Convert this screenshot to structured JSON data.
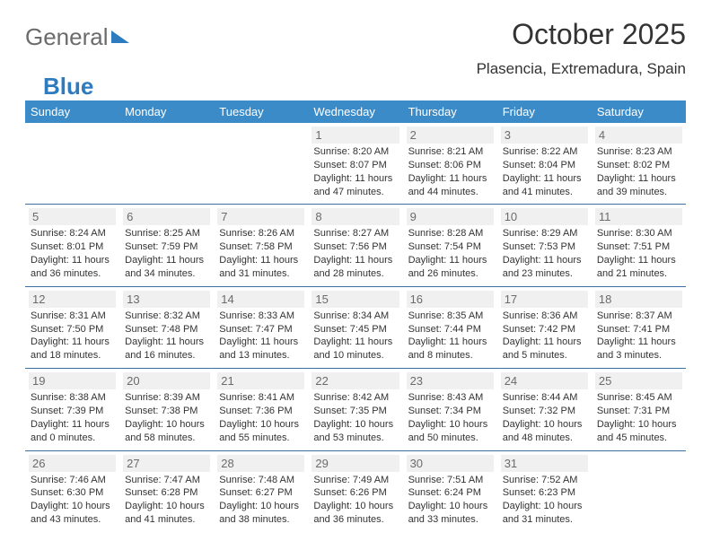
{
  "brand": {
    "part1": "General",
    "part2": "Blue"
  },
  "title": "October 2025",
  "location": "Plasencia, Extremadura, Spain",
  "headers": [
    "Sunday",
    "Monday",
    "Tuesday",
    "Wednesday",
    "Thursday",
    "Friday",
    "Saturday"
  ],
  "colors": {
    "header_bg": "#3b8bc8",
    "header_text": "#ffffff",
    "row_border": "#3b6fa0",
    "daynum_bg": "#f0f0f0",
    "daynum_text": "#6b6b6b",
    "body_text": "#333333",
    "brand_gray": "#6b6b6b",
    "brand_blue": "#2f7bbf"
  },
  "weeks": [
    [
      null,
      null,
      null,
      {
        "n": "1",
        "sr": "8:20 AM",
        "ss": "8:07 PM",
        "dl": "11 hours and 47 minutes."
      },
      {
        "n": "2",
        "sr": "8:21 AM",
        "ss": "8:06 PM",
        "dl": "11 hours and 44 minutes."
      },
      {
        "n": "3",
        "sr": "8:22 AM",
        "ss": "8:04 PM",
        "dl": "11 hours and 41 minutes."
      },
      {
        "n": "4",
        "sr": "8:23 AM",
        "ss": "8:02 PM",
        "dl": "11 hours and 39 minutes."
      }
    ],
    [
      {
        "n": "5",
        "sr": "8:24 AM",
        "ss": "8:01 PM",
        "dl": "11 hours and 36 minutes."
      },
      {
        "n": "6",
        "sr": "8:25 AM",
        "ss": "7:59 PM",
        "dl": "11 hours and 34 minutes."
      },
      {
        "n": "7",
        "sr": "8:26 AM",
        "ss": "7:58 PM",
        "dl": "11 hours and 31 minutes."
      },
      {
        "n": "8",
        "sr": "8:27 AM",
        "ss": "7:56 PM",
        "dl": "11 hours and 28 minutes."
      },
      {
        "n": "9",
        "sr": "8:28 AM",
        "ss": "7:54 PM",
        "dl": "11 hours and 26 minutes."
      },
      {
        "n": "10",
        "sr": "8:29 AM",
        "ss": "7:53 PM",
        "dl": "11 hours and 23 minutes."
      },
      {
        "n": "11",
        "sr": "8:30 AM",
        "ss": "7:51 PM",
        "dl": "11 hours and 21 minutes."
      }
    ],
    [
      {
        "n": "12",
        "sr": "8:31 AM",
        "ss": "7:50 PM",
        "dl": "11 hours and 18 minutes."
      },
      {
        "n": "13",
        "sr": "8:32 AM",
        "ss": "7:48 PM",
        "dl": "11 hours and 16 minutes."
      },
      {
        "n": "14",
        "sr": "8:33 AM",
        "ss": "7:47 PM",
        "dl": "11 hours and 13 minutes."
      },
      {
        "n": "15",
        "sr": "8:34 AM",
        "ss": "7:45 PM",
        "dl": "11 hours and 10 minutes."
      },
      {
        "n": "16",
        "sr": "8:35 AM",
        "ss": "7:44 PM",
        "dl": "11 hours and 8 minutes."
      },
      {
        "n": "17",
        "sr": "8:36 AM",
        "ss": "7:42 PM",
        "dl": "11 hours and 5 minutes."
      },
      {
        "n": "18",
        "sr": "8:37 AM",
        "ss": "7:41 PM",
        "dl": "11 hours and 3 minutes."
      }
    ],
    [
      {
        "n": "19",
        "sr": "8:38 AM",
        "ss": "7:39 PM",
        "dl": "11 hours and 0 minutes."
      },
      {
        "n": "20",
        "sr": "8:39 AM",
        "ss": "7:38 PM",
        "dl": "10 hours and 58 minutes."
      },
      {
        "n": "21",
        "sr": "8:41 AM",
        "ss": "7:36 PM",
        "dl": "10 hours and 55 minutes."
      },
      {
        "n": "22",
        "sr": "8:42 AM",
        "ss": "7:35 PM",
        "dl": "10 hours and 53 minutes."
      },
      {
        "n": "23",
        "sr": "8:43 AM",
        "ss": "7:34 PM",
        "dl": "10 hours and 50 minutes."
      },
      {
        "n": "24",
        "sr": "8:44 AM",
        "ss": "7:32 PM",
        "dl": "10 hours and 48 minutes."
      },
      {
        "n": "25",
        "sr": "8:45 AM",
        "ss": "7:31 PM",
        "dl": "10 hours and 45 minutes."
      }
    ],
    [
      {
        "n": "26",
        "sr": "7:46 AM",
        "ss": "6:30 PM",
        "dl": "10 hours and 43 minutes."
      },
      {
        "n": "27",
        "sr": "7:47 AM",
        "ss": "6:28 PM",
        "dl": "10 hours and 41 minutes."
      },
      {
        "n": "28",
        "sr": "7:48 AM",
        "ss": "6:27 PM",
        "dl": "10 hours and 38 minutes."
      },
      {
        "n": "29",
        "sr": "7:49 AM",
        "ss": "6:26 PM",
        "dl": "10 hours and 36 minutes."
      },
      {
        "n": "30",
        "sr": "7:51 AM",
        "ss": "6:24 PM",
        "dl": "10 hours and 33 minutes."
      },
      {
        "n": "31",
        "sr": "7:52 AM",
        "ss": "6:23 PM",
        "dl": "10 hours and 31 minutes."
      },
      null
    ]
  ],
  "labels": {
    "sunrise": "Sunrise: ",
    "sunset": "Sunset: ",
    "daylight": "Daylight: "
  }
}
